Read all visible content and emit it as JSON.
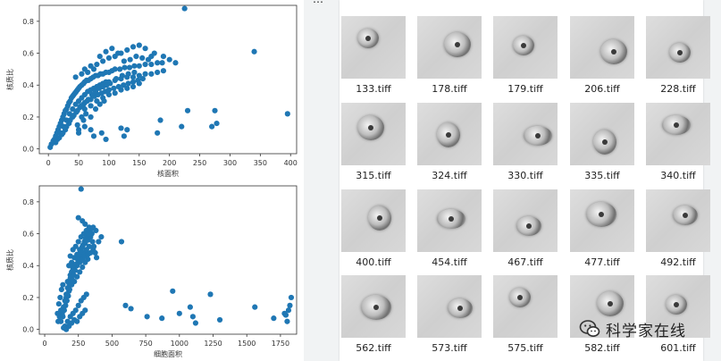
{
  "chart_data": [
    {
      "type": "scatter",
      "title": "",
      "xlabel": "核面积",
      "ylabel": "核质比",
      "xlim": [
        -15,
        410
      ],
      "ylim": [
        -0.03,
        0.9
      ],
      "xticks": [
        0,
        50,
        100,
        150,
        200,
        250,
        300,
        350,
        400
      ],
      "yticks": [
        0.0,
        0.2,
        0.4,
        0.6,
        0.8
      ],
      "color": "#1f77b4",
      "points": [
        [
          3,
          0.01
        ],
        [
          5,
          0.03
        ],
        [
          8,
          0.05
        ],
        [
          10,
          0.06
        ],
        [
          12,
          0.08
        ],
        [
          14,
          0.1
        ],
        [
          16,
          0.12
        ],
        [
          18,
          0.14
        ],
        [
          20,
          0.16
        ],
        [
          22,
          0.18
        ],
        [
          24,
          0.2
        ],
        [
          26,
          0.22
        ],
        [
          28,
          0.24
        ],
        [
          30,
          0.25
        ],
        [
          32,
          0.27
        ],
        [
          34,
          0.29
        ],
        [
          36,
          0.3
        ],
        [
          38,
          0.32
        ],
        [
          40,
          0.33
        ],
        [
          42,
          0.34
        ],
        [
          44,
          0.35
        ],
        [
          46,
          0.36
        ],
        [
          48,
          0.37
        ],
        [
          50,
          0.38
        ],
        [
          52,
          0.39
        ],
        [
          55,
          0.4
        ],
        [
          58,
          0.41
        ],
        [
          60,
          0.42
        ],
        [
          63,
          0.43
        ],
        [
          66,
          0.43
        ],
        [
          70,
          0.44
        ],
        [
          74,
          0.45
        ],
        [
          78,
          0.46
        ],
        [
          82,
          0.46
        ],
        [
          86,
          0.47
        ],
        [
          90,
          0.47
        ],
        [
          95,
          0.48
        ],
        [
          100,
          0.48
        ],
        [
          105,
          0.49
        ],
        [
          110,
          0.5
        ],
        [
          118,
          0.5
        ],
        [
          126,
          0.51
        ],
        [
          134,
          0.51
        ],
        [
          142,
          0.52
        ],
        [
          150,
          0.52
        ],
        [
          160,
          0.53
        ],
        [
          170,
          0.53
        ],
        [
          180,
          0.54
        ],
        [
          188,
          0.54
        ],
        [
          20,
          0.1
        ],
        [
          25,
          0.14
        ],
        [
          30,
          0.18
        ],
        [
          35,
          0.22
        ],
        [
          40,
          0.25
        ],
        [
          45,
          0.28
        ],
        [
          50,
          0.3
        ],
        [
          55,
          0.32
        ],
        [
          60,
          0.34
        ],
        [
          65,
          0.36
        ],
        [
          70,
          0.37
        ],
        [
          75,
          0.38
        ],
        [
          80,
          0.39
        ],
        [
          85,
          0.4
        ],
        [
          90,
          0.41
        ],
        [
          95,
          0.42
        ],
        [
          100,
          0.42
        ],
        [
          110,
          0.43
        ],
        [
          120,
          0.44
        ],
        [
          130,
          0.45
        ],
        [
          140,
          0.45
        ],
        [
          150,
          0.46
        ],
        [
          160,
          0.47
        ],
        [
          170,
          0.47
        ],
        [
          180,
          0.48
        ],
        [
          190,
          0.49
        ],
        [
          15,
          0.06
        ],
        [
          22,
          0.09
        ],
        [
          28,
          0.12
        ],
        [
          34,
          0.16
        ],
        [
          40,
          0.2
        ],
        [
          46,
          0.23
        ],
        [
          52,
          0.26
        ],
        [
          58,
          0.28
        ],
        [
          64,
          0.3
        ],
        [
          70,
          0.31
        ],
        [
          76,
          0.33
        ],
        [
          82,
          0.34
        ],
        [
          88,
          0.35
        ],
        [
          94,
          0.36
        ],
        [
          100,
          0.37
        ],
        [
          108,
          0.38
        ],
        [
          116,
          0.39
        ],
        [
          124,
          0.4
        ],
        [
          132,
          0.41
        ],
        [
          140,
          0.42
        ],
        [
          148,
          0.43
        ],
        [
          156,
          0.44
        ],
        [
          12,
          0.04
        ],
        [
          18,
          0.07
        ],
        [
          24,
          0.1
        ],
        [
          30,
          0.14
        ],
        [
          36,
          0.18
        ],
        [
          42,
          0.21
        ],
        [
          48,
          0.24
        ],
        [
          54,
          0.27
        ],
        [
          60,
          0.29
        ],
        [
          66,
          0.31
        ],
        [
          72,
          0.34
        ],
        [
          78,
          0.36
        ],
        [
          84,
          0.38
        ],
        [
          90,
          0.39
        ],
        [
          96,
          0.4
        ],
        [
          102,
          0.41
        ],
        [
          112,
          0.44
        ],
        [
          122,
          0.46
        ],
        [
          132,
          0.47
        ],
        [
          142,
          0.48
        ],
        [
          60,
          0.5
        ],
        [
          70,
          0.52
        ],
        [
          80,
          0.53
        ],
        [
          90,
          0.55
        ],
        [
          100,
          0.57
        ],
        [
          110,
          0.58
        ],
        [
          120,
          0.6
        ],
        [
          130,
          0.62
        ],
        [
          140,
          0.64
        ],
        [
          150,
          0.65
        ],
        [
          160,
          0.63
        ],
        [
          175,
          0.6
        ],
        [
          190,
          0.58
        ],
        [
          200,
          0.56
        ],
        [
          210,
          0.54
        ],
        [
          85,
          0.58
        ],
        [
          95,
          0.61
        ],
        [
          105,
          0.63
        ],
        [
          115,
          0.6
        ],
        [
          125,
          0.55
        ],
        [
          135,
          0.56
        ],
        [
          145,
          0.58
        ],
        [
          155,
          0.57
        ],
        [
          165,
          0.56
        ],
        [
          170,
          0.58
        ],
        [
          45,
          0.45
        ],
        [
          55,
          0.47
        ],
        [
          65,
          0.48
        ],
        [
          75,
          0.5
        ],
        [
          60,
          0.25
        ],
        [
          70,
          0.27
        ],
        [
          80,
          0.3
        ],
        [
          90,
          0.32
        ],
        [
          100,
          0.34
        ],
        [
          110,
          0.35
        ],
        [
          120,
          0.37
        ],
        [
          130,
          0.38
        ],
        [
          140,
          0.39
        ],
        [
          150,
          0.41
        ],
        [
          48,
          0.15
        ],
        [
          55,
          0.2
        ],
        [
          62,
          0.22
        ],
        [
          70,
          0.2
        ],
        [
          78,
          0.25
        ],
        [
          85,
          0.28
        ],
        [
          92,
          0.3
        ],
        [
          50,
          0.12
        ],
        [
          58,
          0.18
        ],
        [
          225,
          0.88
        ],
        [
          340,
          0.61
        ],
        [
          395,
          0.22
        ],
        [
          230,
          0.24
        ],
        [
          275,
          0.24
        ],
        [
          278,
          0.16
        ],
        [
          270,
          0.14
        ],
        [
          185,
          0.18
        ],
        [
          180,
          0.1
        ],
        [
          220,
          0.14
        ],
        [
          130,
          0.12
        ],
        [
          120,
          0.13
        ],
        [
          125,
          0.08
        ],
        [
          95,
          0.06
        ],
        [
          88,
          0.1
        ],
        [
          75,
          0.08
        ],
        [
          70,
          0.12
        ],
        [
          60,
          0.14
        ],
        [
          50,
          0.1
        ]
      ]
    },
    {
      "type": "scatter",
      "title": "",
      "xlabel": "细胞面积",
      "ylabel": "核质比",
      "xlim": [
        -40,
        1870
      ],
      "ylim": [
        -0.03,
        0.9
      ],
      "xticks": [
        0,
        250,
        500,
        750,
        1000,
        1250,
        1500,
        1750
      ],
      "yticks": [
        0.0,
        0.2,
        0.4,
        0.6,
        0.8
      ],
      "color": "#1f77b4",
      "points": [
        [
          150,
          0.02
        ],
        [
          170,
          0.05
        ],
        [
          190,
          0.08
        ],
        [
          210,
          0.1
        ],
        [
          230,
          0.12
        ],
        [
          250,
          0.15
        ],
        [
          270,
          0.18
        ],
        [
          290,
          0.2
        ],
        [
          310,
          0.22
        ],
        [
          160,
          0.2
        ],
        [
          180,
          0.24
        ],
        [
          200,
          0.28
        ],
        [
          220,
          0.3
        ],
        [
          240,
          0.33
        ],
        [
          260,
          0.36
        ],
        [
          280,
          0.39
        ],
        [
          300,
          0.42
        ],
        [
          320,
          0.44
        ],
        [
          170,
          0.3
        ],
        [
          190,
          0.34
        ],
        [
          210,
          0.38
        ],
        [
          230,
          0.4
        ],
        [
          250,
          0.43
        ],
        [
          270,
          0.46
        ],
        [
          290,
          0.48
        ],
        [
          310,
          0.5
        ],
        [
          330,
          0.52
        ],
        [
          180,
          0.4
        ],
        [
          200,
          0.42
        ],
        [
          220,
          0.45
        ],
        [
          240,
          0.47
        ],
        [
          260,
          0.5
        ],
        [
          280,
          0.52
        ],
        [
          300,
          0.54
        ],
        [
          320,
          0.56
        ],
        [
          340,
          0.58
        ],
        [
          190,
          0.46
        ],
        [
          210,
          0.5
        ],
        [
          230,
          0.52
        ],
        [
          250,
          0.55
        ],
        [
          270,
          0.58
        ],
        [
          290,
          0.6
        ],
        [
          310,
          0.62
        ],
        [
          330,
          0.64
        ],
        [
          350,
          0.6
        ],
        [
          200,
          0.35
        ],
        [
          220,
          0.38
        ],
        [
          240,
          0.4
        ],
        [
          260,
          0.42
        ],
        [
          280,
          0.44
        ],
        [
          300,
          0.46
        ],
        [
          320,
          0.47
        ],
        [
          340,
          0.48
        ],
        [
          360,
          0.5
        ],
        [
          130,
          0.1
        ],
        [
          140,
          0.14
        ],
        [
          150,
          0.18
        ],
        [
          160,
          0.22
        ],
        [
          170,
          0.26
        ],
        [
          180,
          0.29
        ],
        [
          190,
          0.32
        ],
        [
          200,
          0.36
        ],
        [
          210,
          0.4
        ],
        [
          120,
          0.05
        ],
        [
          135,
          0.08
        ],
        [
          145,
          0.12
        ],
        [
          155,
          0.15
        ],
        [
          165,
          0.18
        ],
        [
          175,
          0.21
        ],
        [
          185,
          0.25
        ],
        [
          195,
          0.28
        ],
        [
          205,
          0.31
        ],
        [
          215,
          0.34
        ],
        [
          225,
          0.37
        ],
        [
          235,
          0.41
        ],
        [
          245,
          0.44
        ],
        [
          255,
          0.47
        ],
        [
          265,
          0.49
        ],
        [
          275,
          0.51
        ],
        [
          285,
          0.53
        ],
        [
          295,
          0.55
        ],
        [
          305,
          0.57
        ],
        [
          315,
          0.59
        ],
        [
          325,
          0.6
        ],
        [
          335,
          0.62
        ],
        [
          345,
          0.63
        ],
        [
          355,
          0.55
        ],
        [
          365,
          0.52
        ],
        [
          375,
          0.48
        ],
        [
          385,
          0.45
        ],
        [
          100,
          0.05
        ],
        [
          110,
          0.08
        ],
        [
          120,
          0.12
        ],
        [
          105,
          0.16
        ],
        [
          95,
          0.1
        ],
        [
          115,
          0.2
        ],
        [
          125,
          0.25
        ],
        [
          135,
          0.28
        ],
        [
          400,
          0.55
        ],
        [
          420,
          0.58
        ],
        [
          380,
          0.62
        ],
        [
          360,
          0.64
        ],
        [
          270,
          0.88
        ],
        [
          250,
          0.7
        ],
        [
          280,
          0.68
        ],
        [
          300,
          0.66
        ],
        [
          200,
          0.04
        ],
        [
          220,
          0.06
        ],
        [
          240,
          0.05
        ],
        [
          260,
          0.08
        ],
        [
          280,
          0.1
        ],
        [
          300,
          0.12
        ],
        [
          180,
          0.02
        ],
        [
          160,
          0.0
        ],
        [
          140,
          0.01
        ],
        [
          570,
          0.55
        ],
        [
          600,
          0.15
        ],
        [
          640,
          0.13
        ],
        [
          760,
          0.08
        ],
        [
          950,
          0.24
        ],
        [
          1000,
          0.1
        ],
        [
          1080,
          0.14
        ],
        [
          1100,
          0.08
        ],
        [
          1230,
          0.22
        ],
        [
          1300,
          0.06
        ],
        [
          1560,
          0.14
        ],
        [
          1700,
          0.07
        ],
        [
          1790,
          0.09
        ],
        [
          1810,
          0.12
        ],
        [
          1830,
          0.2
        ],
        [
          1800,
          0.05
        ],
        [
          1820,
          0.15
        ],
        [
          1780,
          0.1
        ],
        [
          870,
          0.07
        ],
        [
          1120,
          0.04
        ]
      ]
    }
  ],
  "gallery": {
    "header_fragment": "…",
    "items": [
      "133.tiff",
      "178.tiff",
      "179.tiff",
      "206.tiff",
      "228.tiff",
      "315.tiff",
      "324.tiff",
      "330.tiff",
      "335.tiff",
      "340.tiff",
      "400.tiff",
      "454.tiff",
      "467.tiff",
      "477.tiff",
      "492.tiff",
      "562.tiff",
      "573.tiff",
      "575.tiff",
      "582.tiff",
      "601.tiff"
    ]
  },
  "watermark": {
    "text": "科学家在线",
    "icon": "wechat-icon"
  }
}
